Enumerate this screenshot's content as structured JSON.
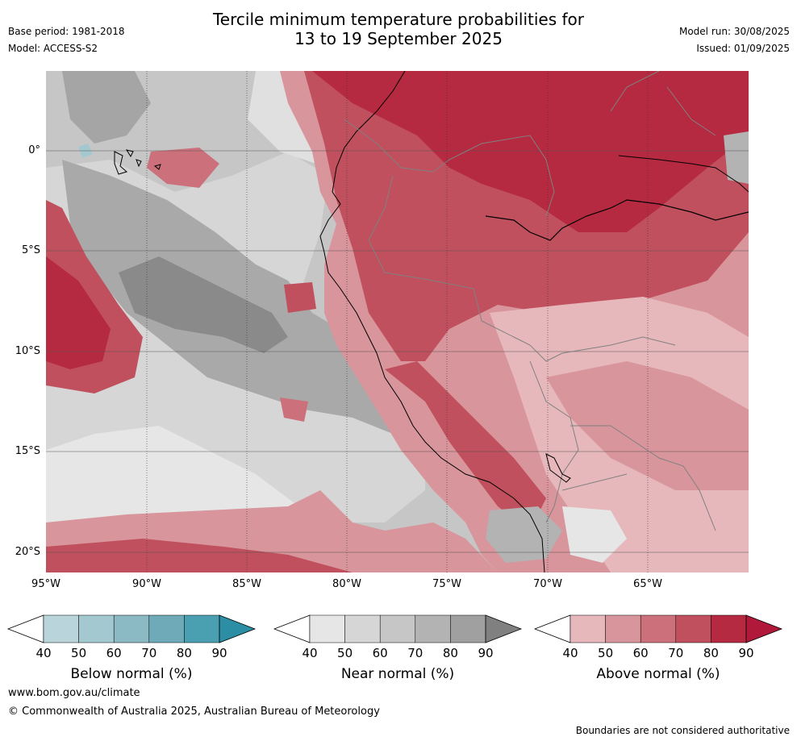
{
  "title_line1": "Tercile minimum temperature probabilities for",
  "title_line2": "13 to 19 September 2025",
  "meta_left": [
    "Base period: 1981-2018",
    "Model: ACCESS-S2"
  ],
  "meta_right": [
    "Model run: 30/08/2025",
    "Issued: 01/09/2025"
  ],
  "x_ticks": [
    "95°W",
    "90°W",
    "85°W",
    "80°W",
    "75°W",
    "70°W",
    "65°W"
  ],
  "y_ticks": [
    "0°",
    "5°S",
    "10°S",
    "15°S",
    "20°S"
  ],
  "colorbars": [
    {
      "label": "Below normal (%)",
      "ticks": [
        "40",
        "50",
        "60",
        "70",
        "80",
        "90"
      ],
      "colors": [
        "#ffffff",
        "#b9d4da",
        "#a4c8cf",
        "#8cbac4",
        "#6eaab7",
        "#4a9fb0",
        "#2b8ea4"
      ]
    },
    {
      "label": "Near normal (%)",
      "ticks": [
        "40",
        "50",
        "60",
        "70",
        "80",
        "90"
      ],
      "colors": [
        "#ffffff",
        "#e6e6e6",
        "#d6d6d6",
        "#c6c6c6",
        "#b3b3b3",
        "#a0a0a0",
        "#808080"
      ]
    },
    {
      "label": "Above normal (%)",
      "ticks": [
        "40",
        "50",
        "60",
        "70",
        "80",
        "90"
      ],
      "colors": [
        "#ffffff",
        "#e6b8bc",
        "#d9959c",
        "#cc717b",
        "#c0505d",
        "#b52a40",
        "#b0193a"
      ]
    }
  ],
  "footer": {
    "url": "www.bom.gov.au/climate",
    "copyright": "© Commonwealth of Australia 2025, Australian Bureau of Meteorology",
    "disclaimer": "Boundaries are not considered authoritative"
  }
}
